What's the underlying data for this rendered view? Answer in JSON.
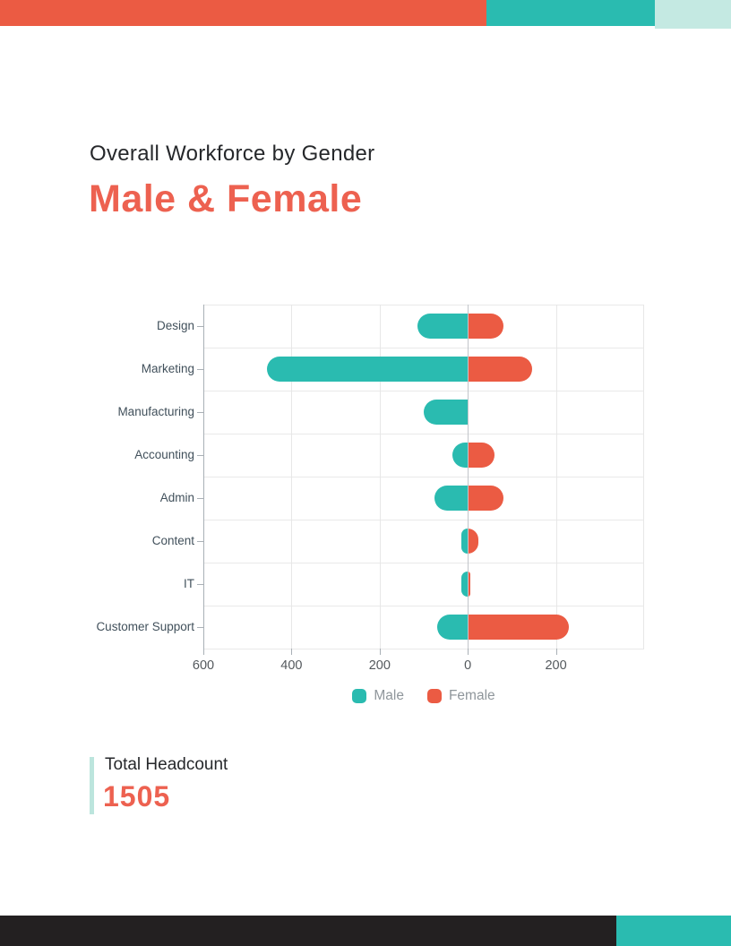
{
  "page": {
    "title": "Overall Workforce by Gender",
    "subtitle": "Male & Female"
  },
  "summary": {
    "label": "Total Headcount",
    "value": "1505"
  },
  "colors": {
    "red": "#EB5B43",
    "red_text": "#ED6150",
    "teal": "#2ABBB0",
    "light_teal": "#C4E9E2",
    "accent_light_teal": "#BCE5DD",
    "footer_dark": "#232021"
  },
  "chart_data": {
    "type": "bar",
    "orientation": "horizontal-diverging",
    "title": "Overall Workforce by Gender — Male & Female",
    "categories": [
      "Design",
      "Marketing",
      "Manufacturing",
      "Accounting",
      "Admin",
      "Content",
      "IT",
      "Customer Support"
    ],
    "series": [
      {
        "name": "Male",
        "direction": "left",
        "color": "#2ABBB0",
        "values": [
          115,
          455,
          100,
          35,
          75,
          15,
          15,
          70
        ]
      },
      {
        "name": "Female",
        "direction": "right",
        "color": "#EB5B43",
        "values": [
          80,
          145,
          0,
          60,
          80,
          25,
          5,
          230
        ]
      }
    ],
    "x_axis": {
      "min": -600,
      "max": 400,
      "ticks": [
        -600,
        -400,
        -200,
        0,
        200
      ],
      "tick_labels": [
        "600",
        "400",
        "200",
        "0",
        "200"
      ]
    },
    "grid": true,
    "legend_position": "bottom",
    "legend": [
      "Male",
      "Female"
    ]
  }
}
